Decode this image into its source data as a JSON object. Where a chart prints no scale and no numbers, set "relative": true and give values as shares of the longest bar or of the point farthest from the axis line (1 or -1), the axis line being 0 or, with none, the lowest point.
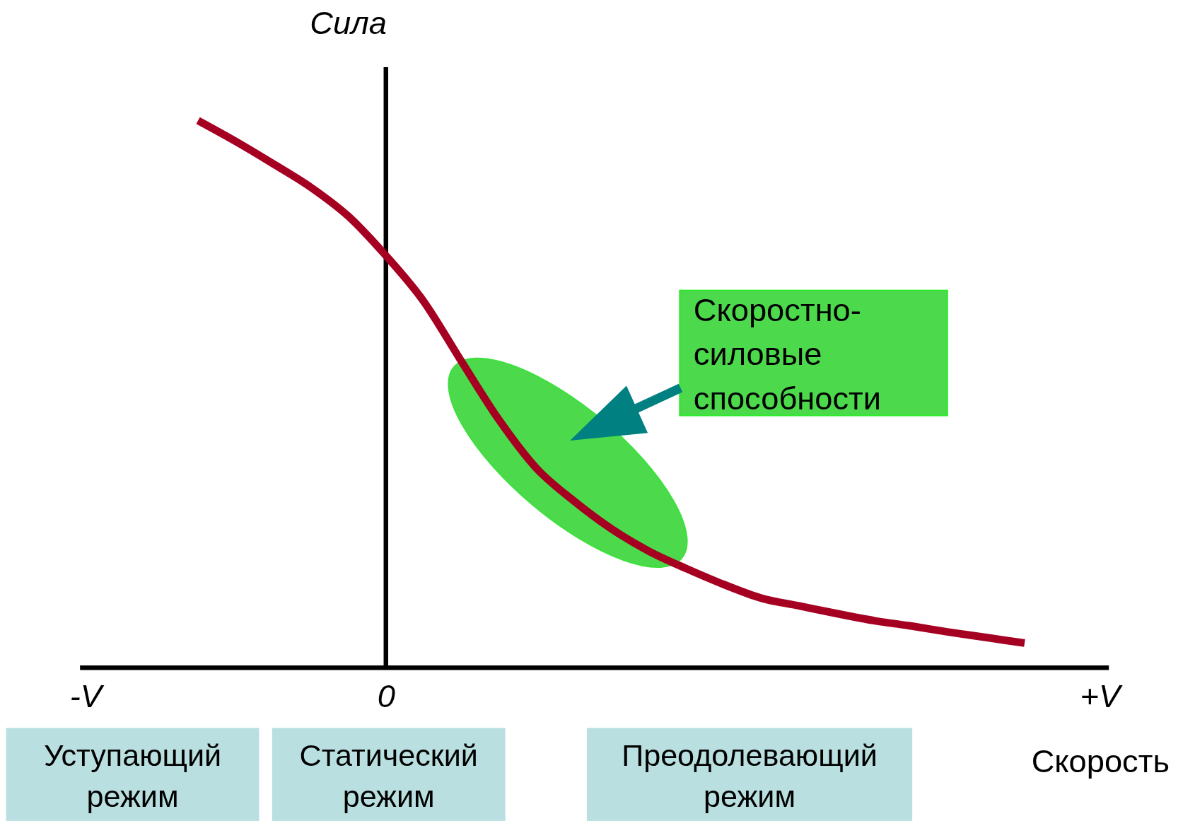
{
  "chart_data": {
    "type": "line",
    "relative": true,
    "ylabel": "Сила",
    "xlabel": "Скорость",
    "categories": [
      "-V",
      null,
      null,
      null,
      null,
      null,
      null,
      null,
      "0",
      null,
      null,
      null,
      null,
      null,
      null,
      null,
      null,
      null,
      null,
      null,
      null,
      null,
      null,
      null,
      null,
      null,
      null,
      "+V"
    ],
    "series": [
      {
        "color": "#a50021",
        "values": [
          null,
          null,
          null,
          1,
          0.962,
          0.921,
          0.878,
          0.825,
          0.753,
          0.67,
          0.561,
          0.454,
          0.365,
          0.305,
          0.254,
          0.213,
          0.181,
          0.152,
          0.127,
          0.113,
          0.099,
          0.086,
          0.076,
          0.065,
          0.055,
          0.045,
          null,
          null
        ]
      }
    ],
    "line_style": "solid",
    "annotations": [
      "Скоростно-силовые способности",
      "Уступающий режим",
      "Статический режим",
      "Преодолевающий режим"
    ]
  }
}
